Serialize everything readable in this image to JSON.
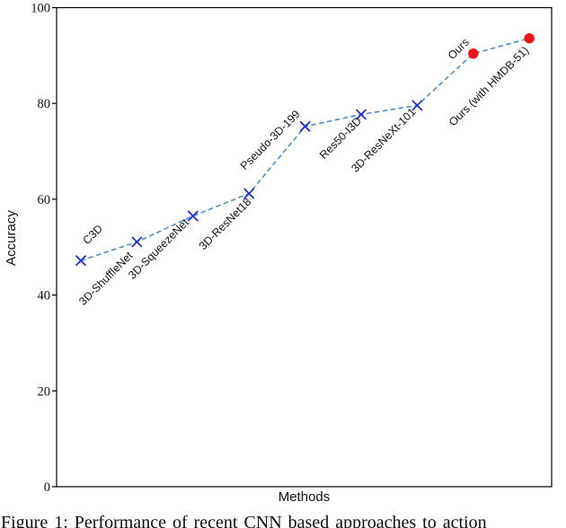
{
  "figure": {
    "caption": "Figure 1: Performance of recent CNN based approaches to action"
  },
  "chart_data": {
    "type": "line",
    "title": "",
    "xlabel": "Methods",
    "ylabel": "Accuracy",
    "ylim": [
      0,
      100
    ],
    "yticks": [
      0,
      20,
      40,
      60,
      80,
      100
    ],
    "grid": false,
    "legend": "none",
    "line_style": "dashed",
    "colors": {
      "line": "#4a90c9",
      "x_marker": "#2433cf",
      "dot_marker": "#ee1416",
      "axis": "#000000",
      "text": "#111111"
    },
    "series": [
      {
        "name": "accuracy-by-method",
        "categories": [
          "C3D",
          "3D-ShuffleNet",
          "3D-SqueezeNet",
          "3D-ResNet18",
          "Pseudo-3D-199",
          "Res50-I3D",
          "3D-ResNeXt-101",
          "Ours",
          "Ours (with HMDB-51)"
        ],
        "values": [
          47.2,
          51.1,
          56.5,
          61.2,
          75.2,
          77.7,
          79.6,
          90.4,
          93.6
        ],
        "points": [
          {
            "label": "C3D",
            "value": 47.2,
            "marker": "x",
            "dx": 25,
            "dy": -35
          },
          {
            "label": "3D-ShuffleNet",
            "value": 51.1,
            "marker": "x",
            "dx": -4,
            "dy": 16
          },
          {
            "label": "3D-SqueezeNet",
            "value": 56.5,
            "marker": "x",
            "dx": -4,
            "dy": 8
          },
          {
            "label": "3D-ResNet18",
            "value": 61.2,
            "marker": "x",
            "dx": 3,
            "dy": 10
          },
          {
            "label": "Pseudo-3D-199",
            "value": 75.2,
            "marker": "x",
            "dx": -5,
            "dy": -13
          },
          {
            "label": "Res50-I3D",
            "value": 77.7,
            "marker": "x",
            "dx": 1,
            "dy": 8
          },
          {
            "label": "3D-ResNeXt-101",
            "value": 79.6,
            "marker": "x",
            "dx": -1,
            "dy": 8
          },
          {
            "label": "Ours",
            "value": 90.4,
            "marker": "dot",
            "dx": -4,
            "dy": -12
          },
          {
            "label": "Ours (with HMDB-51)",
            "value": 93.6,
            "marker": "dot",
            "dx": 0,
            "dy": 14
          }
        ]
      }
    ]
  }
}
